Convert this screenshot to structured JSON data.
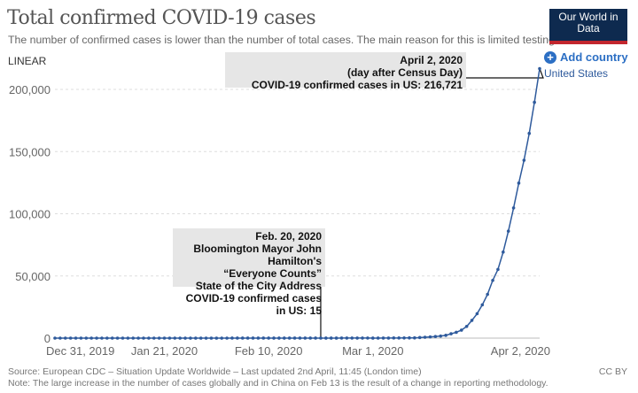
{
  "header": {
    "title": "Total confirmed COVID-19 cases",
    "subtitle": "The number of confirmed cases is lower than the number of total cases. The main reason for this is limited testing.",
    "logo": "Our World in Data",
    "scale_toggle": "LINEAR",
    "add_country": "Add country"
  },
  "footer": {
    "source": "Source: European CDC – Situation Update Worldwide – Last updated 2nd April, 11:45 (London time)",
    "note": "Note: The large increase in the number of cases globally and in China on Feb 13 is the result of a change in reporting methodology.",
    "license": "CC BY"
  },
  "colors": {
    "series": "#2e5a9c",
    "accent": "#2c6fc4",
    "logo_bg": "#0e2a4f",
    "logo_bar": "#c2262e"
  },
  "annotations": [
    {
      "lines": [
        "Feb. 20, 2020",
        "Bloomington Mayor John Hamilton's",
        "“Everyone Counts”",
        "State of the City Address",
        "COVID-19 confirmed cases in US: 15"
      ],
      "date": "2020-02-20"
    },
    {
      "lines": [
        "April 2, 2020",
        "(day after Census Day)",
        "COVID-19 confirmed cases in US: 216,721"
      ],
      "date": "2020-04-02"
    }
  ],
  "chart_data": {
    "type": "line",
    "title": "Total confirmed COVID-19 cases",
    "xlim": [
      "2019-12-31",
      "2020-04-02"
    ],
    "ylim": [
      0,
      200000
    ],
    "grid": "horizontal dashed",
    "x_ticks": [
      "Dec 31, 2019",
      "Jan 21, 2020",
      "Feb 10, 2020",
      "Mar 1, 2020",
      "Apr 2, 2020"
    ],
    "x_tick_dates": [
      "2019-12-31",
      "2020-01-21",
      "2020-02-10",
      "2020-03-01",
      "2020-04-02"
    ],
    "y_ticks": [
      0,
      50000,
      100000,
      150000,
      200000
    ],
    "y_tick_labels": [
      "0",
      "50,000",
      "100,000",
      "150,000",
      "200,000"
    ],
    "series": [
      {
        "name": "United States",
        "start": "2019-12-31",
        "values": [
          0,
          0,
          0,
          0,
          0,
          0,
          0,
          0,
          0,
          0,
          0,
          0,
          0,
          0,
          0,
          0,
          0,
          0,
          0,
          0,
          0,
          1,
          1,
          1,
          2,
          2,
          5,
          5,
          5,
          5,
          5,
          6,
          7,
          8,
          11,
          11,
          11,
          12,
          12,
          12,
          12,
          12,
          13,
          13,
          14,
          15,
          15,
          15,
          15,
          15,
          15,
          15,
          35,
          35,
          35,
          53,
          53,
          59,
          60,
          62,
          68,
          30,
          43,
          53,
          80,
          108,
          129,
          148,
          213,
          213,
          472,
          696,
          987,
          1264,
          1678,
          2234,
          3487,
          4661,
          6427,
          9415,
          14250,
          19624,
          26747,
          35206,
          46442,
          55231,
          69194,
          85991,
          104686,
          124665,
          143025,
          164620,
          189618,
          216721
        ]
      }
    ]
  }
}
